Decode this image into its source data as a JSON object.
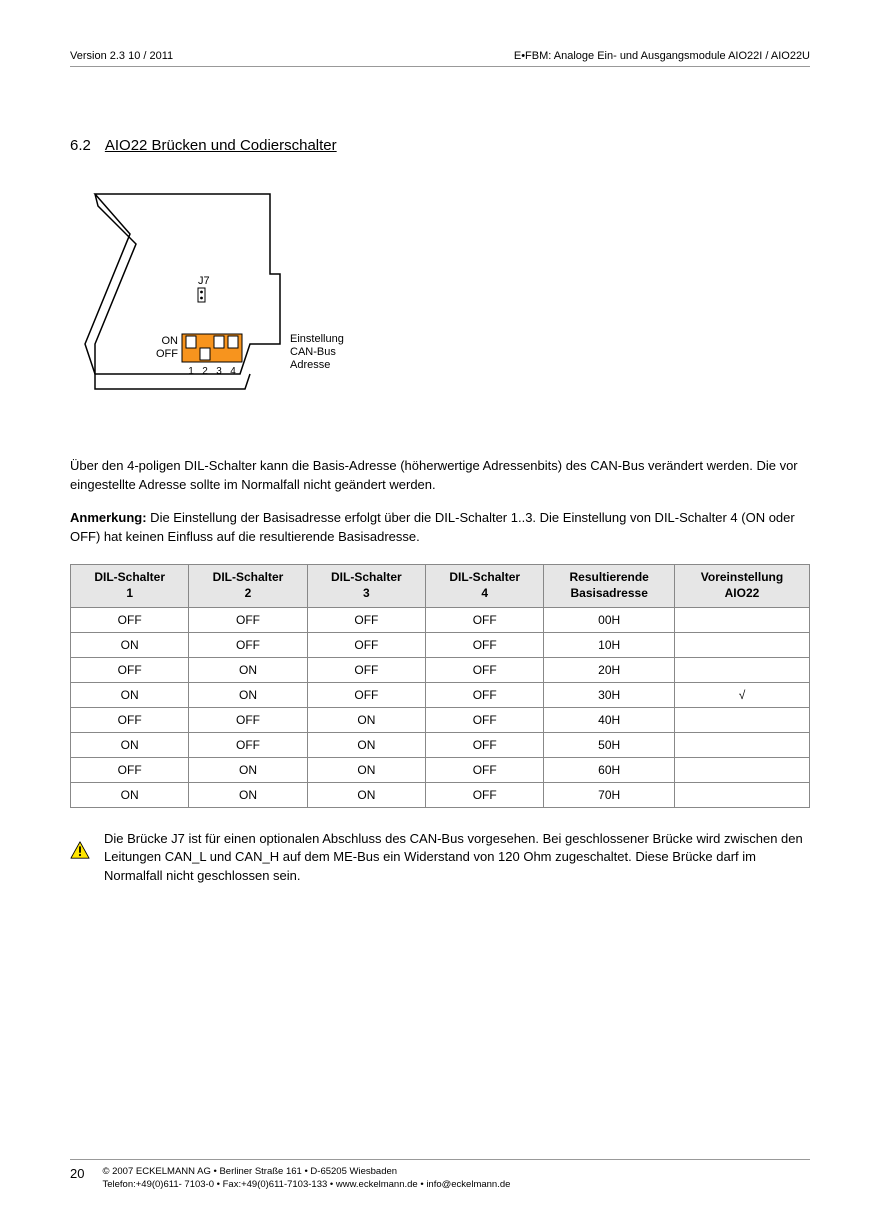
{
  "header": {
    "left": "Version 2.3   10 / 2011",
    "right": "E•FBM: Analoge Ein- und Ausgangsmodule AIO22I / AIO22U"
  },
  "section": {
    "number": "6.2",
    "title": "AIO22 Brücken und Codierschalter"
  },
  "diagram": {
    "j7_label": "J7",
    "on_label": "ON",
    "off_label": "OFF",
    "num1": "1",
    "num2": "2",
    "num3": "3",
    "num4": "4",
    "caption_line1": "Einstellung",
    "caption_line2": "CAN-Bus",
    "caption_line3": "Adresse",
    "dip_color": "#f7941e",
    "stroke": "#000000"
  },
  "paragraphs": {
    "p1": "Über den 4-poligen DIL-Schalter kann die Basis-Adresse (höherwertige Adressenbits) des CAN-Bus verändert werden. Die vor eingestellte Adresse sollte im Normalfall nicht geändert werden.",
    "note_label": "Anmerkung:",
    "p2": " Die Einstellung der Basisadresse erfolgt über die DIL-Schalter 1..3. Die Einstellung von DIL-Schalter 4 (ON oder OFF) hat keinen Einfluss auf die resultierende Basisadresse."
  },
  "table": {
    "headers": {
      "c1a": "DIL-Schalter",
      "c1b": "1",
      "c2a": "DIL-Schalter",
      "c2b": "2",
      "c3a": "DIL-Schalter",
      "c3b": "3",
      "c4a": "DIL-Schalter",
      "c4b": "4",
      "c5a": "Resultierende",
      "c5b": "Basisadresse",
      "c6a": "Voreinstellung",
      "c6b": "AIO22"
    },
    "rows": [
      {
        "d1": "OFF",
        "d2": "OFF",
        "d3": "OFF",
        "d4": "OFF",
        "addr": "00H",
        "def": ""
      },
      {
        "d1": "ON",
        "d2": "OFF",
        "d3": "OFF",
        "d4": "OFF",
        "addr": "10H",
        "def": ""
      },
      {
        "d1": "OFF",
        "d2": "ON",
        "d3": "OFF",
        "d4": "OFF",
        "addr": "20H",
        "def": ""
      },
      {
        "d1": "ON",
        "d2": "ON",
        "d3": "OFF",
        "d4": "OFF",
        "addr": "30H",
        "def": "√"
      },
      {
        "d1": "OFF",
        "d2": "OFF",
        "d3": "ON",
        "d4": "OFF",
        "addr": "40H",
        "def": ""
      },
      {
        "d1": "ON",
        "d2": "OFF",
        "d3": "ON",
        "d4": "OFF",
        "addr": "50H",
        "def": ""
      },
      {
        "d1": "OFF",
        "d2": "ON",
        "d3": "ON",
        "d4": "OFF",
        "addr": "60H",
        "def": ""
      },
      {
        "d1": "ON",
        "d2": "ON",
        "d3": "ON",
        "d4": "OFF",
        "addr": "70H",
        "def": ""
      }
    ]
  },
  "warning": {
    "text": "Die Brücke J7 ist für einen optionalen Abschluss des CAN-Bus vorgesehen. Bei geschlossener Brücke wird zwischen den Leitungen CAN_L und CAN_H auf dem ME-Bus ein Widerstand von 120 Ohm zugeschaltet. Diese Brücke darf im Normalfall nicht geschlossen sein.",
    "triangle_fill": "#ffe600",
    "triangle_stroke": "#000000"
  },
  "footer": {
    "page": "20",
    "line1": "©  2007 ECKELMANN AG • Berliner Straße 161 • D-65205 Wiesbaden",
    "line2": "Telefon:+49(0)611- 7103-0 • Fax:+49(0)611-7103-133 • www.eckelmann.de • info@eckelmann.de"
  }
}
